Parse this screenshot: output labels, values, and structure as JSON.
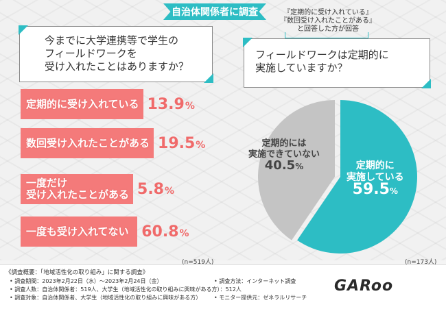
{
  "header": {
    "badge": "自治体関係者に調査",
    "callout_line1": "『定期的に受け入れている』",
    "callout_line2": "『数回受け入れたことがある』",
    "callout_line3": "と回答した方が回答"
  },
  "question1": {
    "line1": "今までに大学連携等で学生の",
    "line2": "フィールドワークを",
    "line3": "受け入れたことはありますか？"
  },
  "question2": {
    "line1": "フィールドワークは定期的に",
    "line2": "実施していますか？"
  },
  "colors": {
    "bar": "#f47a7a",
    "bar_value": "#f06a6a",
    "teal": "#2dbdc4",
    "grey": "#c4c4c4"
  },
  "chart_data": [
    {
      "type": "bar",
      "orientation": "horizontal",
      "categories": [
        "定期的に受け入れている",
        "数回受け入れたことがある",
        "一度だけ 受け入れたことがある",
        "一度も受け入れてない"
      ],
      "label_lines": [
        [
          "定期的に受け入れている"
        ],
        [
          "数回受け入れたことがある"
        ],
        [
          "一度だけ",
          "受け入れたことがある"
        ],
        [
          "一度も受け入れてない"
        ]
      ],
      "values": [
        13.9,
        19.5,
        5.8,
        60.8
      ],
      "value_text": [
        {
          "num": "13.9",
          "pct": "%"
        },
        {
          "num": "19.5",
          "pct": "%"
        },
        {
          "num": "5.8",
          "pct": "%"
        },
        {
          "num": "60.8",
          "pct": "%"
        }
      ],
      "xlim": [
        0,
        100
      ],
      "sample": "(n=519人)"
    },
    {
      "type": "pie",
      "slices": [
        {
          "label_lines": [
            "定期的に",
            "実施している"
          ],
          "value": 59.5,
          "num": "59.5",
          "pct": "%",
          "color": "#2dbdc4"
        },
        {
          "label_lines": [
            "定期的には",
            "実施できていない"
          ],
          "value": 40.5,
          "num": "40.5",
          "pct": "%",
          "color": "#c4c4c4"
        }
      ],
      "sample": "(n=173人)"
    }
  ],
  "footer": {
    "title": "《調査概要：「地域活性化の取り組み」に関する調査》",
    "period": "• 調査期間：2023年2月22日（水）～2023年2月24日（金）",
    "method": "• 調査方法：インターネット調査",
    "count": "• 調査人数：自治体関係者：519人、大学生（地域活性化の取り組みに興味がある方）：512人",
    "target": "• 調査対象：自治体関係者、大学生（地域活性化の取り組みに興味がある方）",
    "provider": "• モニター提供元：ゼネラルリサーチ",
    "logo": "GARoo"
  }
}
